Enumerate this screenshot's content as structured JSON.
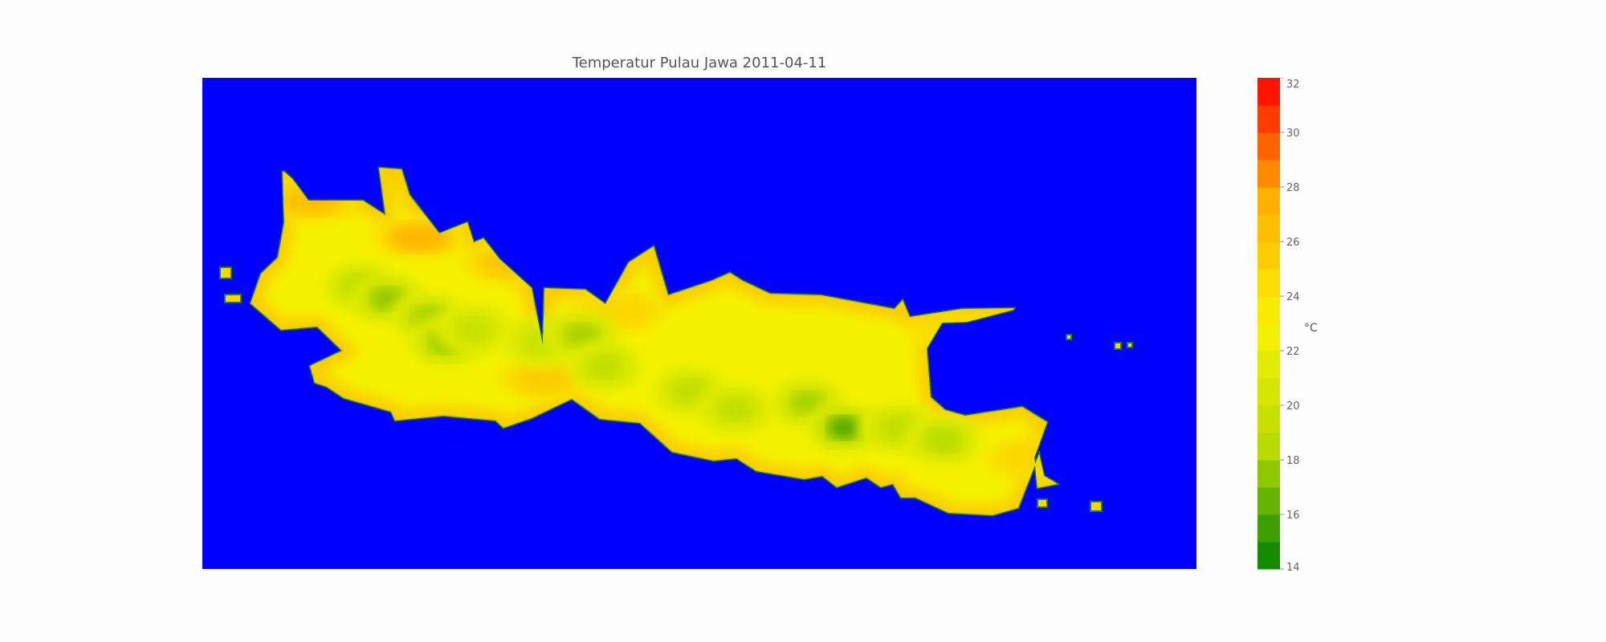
{
  "chart_data": {
    "type": "heatmap",
    "title": "Temperatur Pulau Jawa 2011-04-11",
    "xlabel": "",
    "ylabel": "",
    "colorbar": {
      "label": "°C",
      "min": 14,
      "max": 32,
      "ticks": [
        "14",
        "16",
        "18",
        "20",
        "22",
        "24",
        "26",
        "28",
        "30",
        "32"
      ],
      "colorscale": [
        "#008000",
        "#b8dc00",
        "#f7f200",
        "#ffb000",
        "#ff0000"
      ]
    },
    "background_color": "#0000ff",
    "outline_color": "#1a7f2a",
    "cool_spots": [
      {
        "lon": 106.75,
        "lat": -6.7,
        "value": 18.5
      },
      {
        "lon": 107.05,
        "lat": -6.8,
        "value": 17.5
      },
      {
        "lon": 107.5,
        "lat": -6.95,
        "value": 18.0
      },
      {
        "lon": 107.7,
        "lat": -7.15,
        "value": 17.5
      },
      {
        "lon": 108.0,
        "lat": -7.05,
        "value": 19.5
      },
      {
        "lon": 108.75,
        "lat": -7.15,
        "value": 19.5
      },
      {
        "lon": 109.2,
        "lat": -7.1,
        "value": 18.0
      },
      {
        "lon": 109.45,
        "lat": -7.35,
        "value": 19.0
      },
      {
        "lon": 110.4,
        "lat": -7.55,
        "value": 19.0
      },
      {
        "lon": 110.9,
        "lat": -7.7,
        "value": 19.0
      },
      {
        "lon": 111.7,
        "lat": -7.65,
        "value": 18.0
      },
      {
        "lon": 112.1,
        "lat": -7.85,
        "value": 16.0
      },
      {
        "lon": 112.7,
        "lat": -7.85,
        "value": 19.0
      },
      {
        "lon": 113.2,
        "lat": -7.95,
        "value": 18.5
      }
    ],
    "warm_spots": [
      {
        "lon": 106.2,
        "lat": -6.0,
        "value": 26.5
      },
      {
        "lon": 107.4,
        "lat": -6.3,
        "value": 27.0
      },
      {
        "lon": 108.4,
        "lat": -6.5,
        "value": 26.0
      },
      {
        "lon": 108.8,
        "lat": -7.45,
        "value": 25.5
      },
      {
        "lon": 109.6,
        "lat": -6.9,
        "value": 25.0
      },
      {
        "lon": 113.4,
        "lat": -7.1,
        "value": 25.0
      },
      {
        "lon": 114.2,
        "lat": -8.1,
        "value": 25.0
      }
    ]
  }
}
